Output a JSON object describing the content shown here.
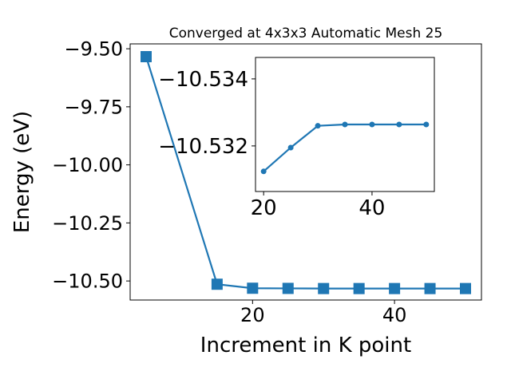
{
  "chart_data": [
    {
      "type": "line",
      "title": "Converged at 4x3x3 Automatic Mesh 25",
      "x_label": "Increment in K point",
      "y_label": "Energy (eV)",
      "x": [
        5,
        15,
        20,
        25,
        30,
        35,
        40,
        45,
        50
      ],
      "values": [
        -9.534,
        -10.514,
        -10.53124,
        -10.53195,
        -10.5326,
        -10.53264,
        -10.53264,
        -10.53264,
        -10.53264
      ],
      "color": "#1f77b4",
      "marker": "square",
      "xlim": [
        2.75,
        52.25
      ],
      "xticks": [
        20,
        40
      ],
      "ylim": [
        -10.582,
        -9.479
      ],
      "yticks": [
        {
          "value": -10.5,
          "label": "−10.50"
        },
        {
          "value": -10.25,
          "label": "−10.25"
        },
        {
          "value": -10.0,
          "label": "−10.00"
        },
        {
          "value": -9.75,
          "label": "−9.75"
        },
        {
          "value": -9.5,
          "label": "−9.50"
        }
      ]
    },
    {
      "type": "line",
      "x": [
        20,
        25,
        30,
        35,
        40,
        45,
        50
      ],
      "values": [
        -10.53124,
        -10.53195,
        -10.5326,
        -10.53264,
        -10.53264,
        -10.53264,
        -10.53264
      ],
      "color": "#1f77b4",
      "marker": "circle",
      "xlim": [
        18.5,
        51.5
      ],
      "xticks": [
        20,
        40
      ],
      "ylim": [
        -10.53064,
        -10.53464
      ],
      "yticks": [
        {
          "value": -10.532,
          "label": "−10.532"
        },
        {
          "value": -10.534,
          "label": "−10.534"
        }
      ]
    }
  ]
}
